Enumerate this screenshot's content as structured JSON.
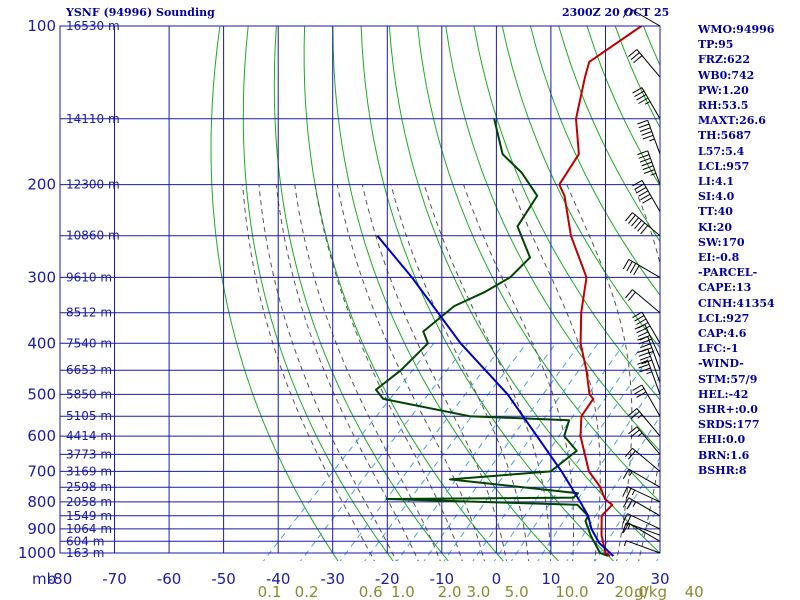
{
  "header": {
    "title": "YSNF (94996) Sounding",
    "timestamp": "2300Z 20 OCT 25"
  },
  "indices": [
    "WMO:94996",
    "TP:95",
    "FRZ:622",
    "WB0:742",
    "PW:1.20",
    "RH:53.5",
    "MAXT:26.6",
    "TH:5687",
    "L57:5.4",
    "LCL:957",
    "LI:4.1",
    "SI:4.0",
    "TT:40",
    "KI:20",
    "SW:170",
    "EI:-0.8",
    "-PARCEL-",
    "CAPE:13",
    "CINH:41354",
    "LCL:927",
    "CAP:4.6",
    "LFC:-1",
    "-WIND-",
    "STM:57/9",
    "HEL:-42",
    "SHR+:0.0",
    "SRDS:177",
    "EHI:0.0",
    "BRN:1.6",
    "BSHR:8"
  ],
  "colors": {
    "grid": "#1a1aa8",
    "dry_adiabat": "#1faa1f",
    "moist_adiabat": "#555555",
    "mixing_ratio": "#4aa0e0",
    "temperature": "#c00000",
    "dewpoint": "#004400",
    "parcel": "#0000c0",
    "wind": "#000000",
    "text": "#0000a0"
  },
  "chart_data": {
    "type": "line",
    "xlim": [
      -80,
      30
    ],
    "x_unit": "C",
    "pressure_range": [
      100,
      1000
    ],
    "x_ticks": [
      -80,
      -70,
      -60,
      -50,
      -40,
      -30,
      -20,
      -10,
      0,
      10,
      20,
      30
    ],
    "x_tick_labels": [
      "-80",
      "-70",
      "-60",
      "-50",
      "-40",
      "-30",
      "-20",
      "-10",
      "0",
      "10",
      "20",
      "30"
    ],
    "x_axis_prefix": "mb",
    "pressure_labels": [
      "100",
      "200",
      "300",
      "400",
      "500",
      "600",
      "700",
      "800",
      "900",
      "1000"
    ],
    "pressure_label_values": [
      100,
      200,
      300,
      400,
      500,
      600,
      700,
      800,
      900,
      1000
    ],
    "height_labels": [
      {
        "p": 100,
        "text": "16530 m"
      },
      {
        "p": 150,
        "text": "14110 m"
      },
      {
        "p": 200,
        "text": "12300 m"
      },
      {
        "p": 250,
        "text": "10860 m"
      },
      {
        "p": 300,
        "text": "9610 m"
      },
      {
        "p": 350,
        "text": "8512 m"
      },
      {
        "p": 400,
        "text": "7540 m"
      },
      {
        "p": 450,
        "text": "6653 m"
      },
      {
        "p": 500,
        "text": "5850 m"
      },
      {
        "p": 550,
        "text": "5105 m"
      },
      {
        "p": 600,
        "text": "4414 m"
      },
      {
        "p": 650,
        "text": "3773 m"
      },
      {
        "p": 700,
        "text": "3169 m"
      },
      {
        "p": 750,
        "text": "2598 m"
      },
      {
        "p": 800,
        "text": "2058 m"
      },
      {
        "p": 850,
        "text": "1549 m"
      },
      {
        "p": 900,
        "text": "1064 m"
      },
      {
        "p": 950,
        "text": "604 m"
      },
      {
        "p": 1000,
        "text": "163 m"
      }
    ],
    "mixing_ratio_labels": [
      {
        "w": 0.1,
        "text": "0.1"
      },
      {
        "w": 0.2,
        "text": "0.2"
      },
      {
        "w": 0.6,
        "text": "0.6"
      },
      {
        "w": 1.0,
        "text": "1.0"
      },
      {
        "w": 2.0,
        "text": "2.0"
      },
      {
        "w": 3.0,
        "text": "3.0"
      },
      {
        "w": 5.0,
        "text": "5.0"
      },
      {
        "w": 10.0,
        "text": "10.0"
      },
      {
        "w": 20.0,
        "text": "20.0"
      },
      {
        "w": 40.0,
        "text": "40"
      }
    ],
    "mixing_ratio_unit": "g/kg",
    "series": [
      {
        "label": "temperature",
        "points": [
          {
            "p": 1013,
            "t": 21.4
          },
          {
            "p": 1000,
            "t": 20.0
          },
          {
            "p": 925,
            "t": 16.0
          },
          {
            "p": 850,
            "t": 12.5
          },
          {
            "p": 810,
            "t": 12.4
          },
          {
            "p": 790,
            "t": 10.0
          },
          {
            "p": 750,
            "t": 7.0
          },
          {
            "p": 700,
            "t": 2.0
          },
          {
            "p": 600,
            "t": -6.0
          },
          {
            "p": 550,
            "t": -9.5
          },
          {
            "p": 510,
            "t": -10.5
          },
          {
            "p": 500,
            "t": -12.0
          },
          {
            "p": 450,
            "t": -17.0
          },
          {
            "p": 400,
            "t": -23.0
          },
          {
            "p": 350,
            "t": -28.5
          },
          {
            "p": 300,
            "t": -34.0
          },
          {
            "p": 250,
            "t": -44.5
          },
          {
            "p": 210,
            "t": -53.0
          },
          {
            "p": 200,
            "t": -56.0
          },
          {
            "p": 175,
            "t": -58.0
          },
          {
            "p": 150,
            "t": -65.0
          },
          {
            "p": 125,
            "t": -71.0
          },
          {
            "p": 117,
            "t": -73.0
          },
          {
            "p": 100,
            "t": -70.0
          }
        ]
      },
      {
        "label": "dewpoint",
        "points": [
          {
            "p": 1013,
            "t": 21.0
          },
          {
            "p": 1000,
            "t": 19.0
          },
          {
            "p": 925,
            "t": 14.0
          },
          {
            "p": 870,
            "t": 10.5
          },
          {
            "p": 850,
            "t": 10.0
          },
          {
            "p": 810,
            "t": 6.0
          },
          {
            "p": 790,
            "t": -30.0
          },
          {
            "p": 785,
            "t": 4.0
          },
          {
            "p": 770,
            "t": 4.0
          },
          {
            "p": 725,
            "t": -22.0
          },
          {
            "p": 700,
            "t": -5.0
          },
          {
            "p": 640,
            "t": -4.0
          },
          {
            "p": 600,
            "t": -9.0
          },
          {
            "p": 560,
            "t": -11.0
          },
          {
            "p": 550,
            "t": -30.0
          },
          {
            "p": 510,
            "t": -49.0
          },
          {
            "p": 490,
            "t": -52.0
          },
          {
            "p": 450,
            "t": -51.0
          },
          {
            "p": 400,
            "t": -51.0
          },
          {
            "p": 380,
            "t": -54.0
          },
          {
            "p": 340,
            "t": -53.0
          },
          {
            "p": 320,
            "t": -50.0
          },
          {
            "p": 300,
            "t": -48.0
          },
          {
            "p": 275,
            "t": -48.0
          },
          {
            "p": 240,
            "t": -56.0
          },
          {
            "p": 210,
            "t": -58.0
          },
          {
            "p": 190,
            "t": -65.0
          },
          {
            "p": 175,
            "t": -72.0
          },
          {
            "p": 150,
            "t": -80.0
          }
        ]
      },
      {
        "label": "parcel",
        "points": [
          {
            "p": 1013,
            "t": 22.0
          },
          {
            "p": 957,
            "t": 17.0
          },
          {
            "p": 900,
            "t": 13.0
          },
          {
            "p": 850,
            "t": 10.0
          },
          {
            "p": 800,
            "t": 6.0
          },
          {
            "p": 700,
            "t": -3.0
          },
          {
            "p": 600,
            "t": -14.0
          },
          {
            "p": 500,
            "t": -27.0
          },
          {
            "p": 400,
            "t": -45.0
          },
          {
            "p": 300,
            "t": -66.0
          },
          {
            "p": 250,
            "t": -80.0
          }
        ]
      }
    ],
    "wind_barbs": [
      {
        "p": 1000,
        "dir": 290,
        "spd": 5
      },
      {
        "p": 950,
        "dir": 300,
        "spd": 10
      },
      {
        "p": 925,
        "dir": 290,
        "spd": 15
      },
      {
        "p": 900,
        "dir": 295,
        "spd": 20
      },
      {
        "p": 850,
        "dir": 300,
        "spd": 25
      },
      {
        "p": 800,
        "dir": 295,
        "spd": 25
      },
      {
        "p": 750,
        "dir": 300,
        "spd": 15
      },
      {
        "p": 700,
        "dir": 310,
        "spd": 20
      },
      {
        "p": 650,
        "dir": 320,
        "spd": 25
      },
      {
        "p": 600,
        "dir": 320,
        "spd": 25
      },
      {
        "p": 550,
        "dir": 330,
        "spd": 30
      },
      {
        "p": 500,
        "dir": 340,
        "spd": 35
      },
      {
        "p": 475,
        "dir": 340,
        "spd": 40
      },
      {
        "p": 450,
        "dir": 340,
        "spd": 45
      },
      {
        "p": 425,
        "dir": 335,
        "spd": 45
      },
      {
        "p": 400,
        "dir": 330,
        "spd": 45
      },
      {
        "p": 350,
        "dir": 310,
        "spd": 20
      },
      {
        "p": 300,
        "dir": 300,
        "spd": 40
      },
      {
        "p": 250,
        "dir": 310,
        "spd": 60
      },
      {
        "p": 225,
        "dir": 330,
        "spd": 60
      },
      {
        "p": 200,
        "dir": 340,
        "spd": 65
      },
      {
        "p": 175,
        "dir": 340,
        "spd": 55
      },
      {
        "p": 150,
        "dir": 330,
        "spd": 45
      },
      {
        "p": 125,
        "dir": 320,
        "spd": 30
      },
      {
        "p": 100,
        "dir": 300,
        "spd": 15
      }
    ]
  }
}
